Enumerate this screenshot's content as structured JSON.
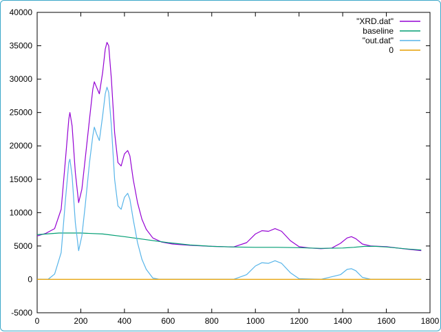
{
  "chart_data": {
    "type": "line",
    "title": "",
    "xlabel": "",
    "ylabel": "",
    "xlim": [
      0,
      1800
    ],
    "ylim": [
      -5000,
      40000
    ],
    "x_ticks": [
      0,
      200,
      400,
      600,
      800,
      1000,
      1200,
      1400,
      1600,
      1800
    ],
    "y_ticks": [
      -5000,
      0,
      5000,
      10000,
      15000,
      20000,
      25000,
      30000,
      35000,
      40000
    ],
    "x_tick_labels": [
      "0",
      "200",
      "400",
      "600",
      "800",
      "1000",
      "1200",
      "1400",
      "1600",
      "1800"
    ],
    "y_tick_labels": [
      "-5000",
      "0",
      "5000",
      "10000",
      "15000",
      "20000",
      "25000",
      "30000",
      "35000",
      "40000"
    ],
    "grid": false,
    "legend_position": "top-right",
    "series": [
      {
        "name": "\"XRD.dat\"",
        "color": "#9400d3",
        "points": [
          [
            0,
            6500
          ],
          [
            40,
            6900
          ],
          [
            80,
            7600
          ],
          [
            110,
            10500
          ],
          [
            130,
            18000
          ],
          [
            145,
            24000
          ],
          [
            150,
            25000
          ],
          [
            160,
            23000
          ],
          [
            175,
            16000
          ],
          [
            190,
            11500
          ],
          [
            205,
            13500
          ],
          [
            220,
            18000
          ],
          [
            240,
            24000
          ],
          [
            255,
            28500
          ],
          [
            262,
            29600
          ],
          [
            272,
            28800
          ],
          [
            285,
            27800
          ],
          [
            300,
            31000
          ],
          [
            312,
            34500
          ],
          [
            320,
            35500
          ],
          [
            328,
            35000
          ],
          [
            340,
            30000
          ],
          [
            355,
            22000
          ],
          [
            370,
            17500
          ],
          [
            385,
            17000
          ],
          [
            400,
            18800
          ],
          [
            415,
            19300
          ],
          [
            425,
            18500
          ],
          [
            440,
            15000
          ],
          [
            460,
            11500
          ],
          [
            480,
            9000
          ],
          [
            500,
            7500
          ],
          [
            530,
            6200
          ],
          [
            570,
            5600
          ],
          [
            620,
            5300
          ],
          [
            700,
            5100
          ],
          [
            800,
            4950
          ],
          [
            900,
            4850
          ],
          [
            960,
            5500
          ],
          [
            1000,
            6800
          ],
          [
            1030,
            7300
          ],
          [
            1060,
            7200
          ],
          [
            1090,
            7600
          ],
          [
            1120,
            7200
          ],
          [
            1160,
            5800
          ],
          [
            1200,
            4900
          ],
          [
            1250,
            4700
          ],
          [
            1300,
            4600
          ],
          [
            1350,
            4700
          ],
          [
            1390,
            5400
          ],
          [
            1420,
            6200
          ],
          [
            1440,
            6400
          ],
          [
            1460,
            6100
          ],
          [
            1490,
            5300
          ],
          [
            1530,
            5000
          ],
          [
            1600,
            4900
          ],
          [
            1700,
            4500
          ],
          [
            1760,
            4300
          ]
        ]
      },
      {
        "name": "baseline",
        "color": "#009e73",
        "points": [
          [
            0,
            6700
          ],
          [
            100,
            6950
          ],
          [
            200,
            6950
          ],
          [
            300,
            6800
          ],
          [
            400,
            6400
          ],
          [
            500,
            5950
          ],
          [
            600,
            5500
          ],
          [
            700,
            5150
          ],
          [
            800,
            4950
          ],
          [
            900,
            4850
          ],
          [
            1000,
            4800
          ],
          [
            1100,
            4800
          ],
          [
            1200,
            4750
          ],
          [
            1300,
            4650
          ],
          [
            1400,
            4700
          ],
          [
            1450,
            4800
          ],
          [
            1500,
            4950
          ],
          [
            1550,
            4950
          ],
          [
            1600,
            4850
          ],
          [
            1700,
            4550
          ],
          [
            1760,
            4400
          ]
        ]
      },
      {
        "name": "\"out.dat\"",
        "color": "#56b4e9",
        "points": [
          [
            0,
            0
          ],
          [
            50,
            0
          ],
          [
            80,
            800
          ],
          [
            110,
            4000
          ],
          [
            130,
            12000
          ],
          [
            145,
            17500
          ],
          [
            150,
            18000
          ],
          [
            160,
            15500
          ],
          [
            175,
            8500
          ],
          [
            190,
            4300
          ],
          [
            205,
            6500
          ],
          [
            220,
            11000
          ],
          [
            240,
            17500
          ],
          [
            255,
            21500
          ],
          [
            262,
            22800
          ],
          [
            272,
            21800
          ],
          [
            285,
            20800
          ],
          [
            300,
            24500
          ],
          [
            312,
            27800
          ],
          [
            320,
            28800
          ],
          [
            328,
            28000
          ],
          [
            340,
            23000
          ],
          [
            355,
            15000
          ],
          [
            370,
            11000
          ],
          [
            385,
            10500
          ],
          [
            400,
            12300
          ],
          [
            415,
            12900
          ],
          [
            425,
            12000
          ],
          [
            440,
            9000
          ],
          [
            460,
            5500
          ],
          [
            480,
            3000
          ],
          [
            500,
            1500
          ],
          [
            530,
            200
          ],
          [
            560,
            0
          ],
          [
            700,
            0
          ],
          [
            900,
            0
          ],
          [
            960,
            700
          ],
          [
            1000,
            2000
          ],
          [
            1030,
            2500
          ],
          [
            1060,
            2400
          ],
          [
            1090,
            2800
          ],
          [
            1120,
            2400
          ],
          [
            1160,
            1000
          ],
          [
            1200,
            100
          ],
          [
            1300,
            0
          ],
          [
            1390,
            700
          ],
          [
            1420,
            1500
          ],
          [
            1440,
            1600
          ],
          [
            1460,
            1300
          ],
          [
            1490,
            300
          ],
          [
            1530,
            0
          ],
          [
            1760,
            0
          ]
        ]
      },
      {
        "name": "0",
        "color": "#e69f00",
        "points": [
          [
            0,
            0
          ],
          [
            1760,
            0
          ]
        ]
      }
    ]
  }
}
